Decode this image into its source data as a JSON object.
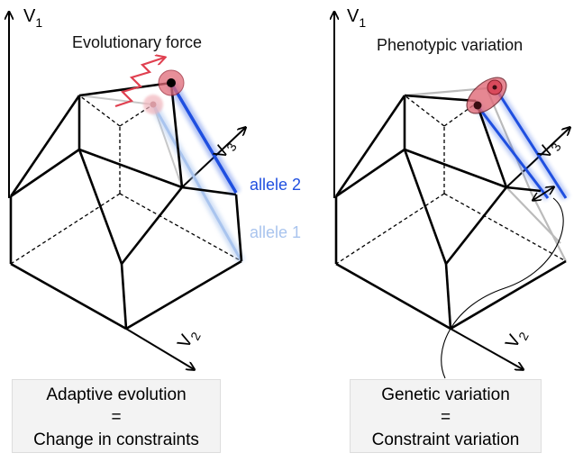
{
  "left_panel": {
    "axis_v1": "V",
    "axis_v1_sub": "1",
    "axis_v2": "V",
    "axis_v2_sub": "2",
    "axis_v3": "V",
    "axis_v3_sub": "3",
    "force_label": "Evolutionary force",
    "allele2_label": "allele 2",
    "allele1_label": "allele 1",
    "caption": [
      "Adaptive evolution",
      "=",
      "Change in constraints"
    ]
  },
  "right_panel": {
    "axis_v1": "V",
    "axis_v1_sub": "1",
    "axis_v2": "V",
    "axis_v2_sub": "2",
    "axis_v3": "V",
    "axis_v3_sub": "3",
    "phenotypic_label": "Phenotypic variation",
    "caption": [
      "Genetic variation",
      "=",
      "Constraint variation"
    ]
  },
  "colors": {
    "allele2": "#1f4fe0",
    "allele1": "#a9c4ee",
    "force_red": "#e04050",
    "ellipse_fill": "#e06a78",
    "caption_bg": "#f3f3f3"
  }
}
